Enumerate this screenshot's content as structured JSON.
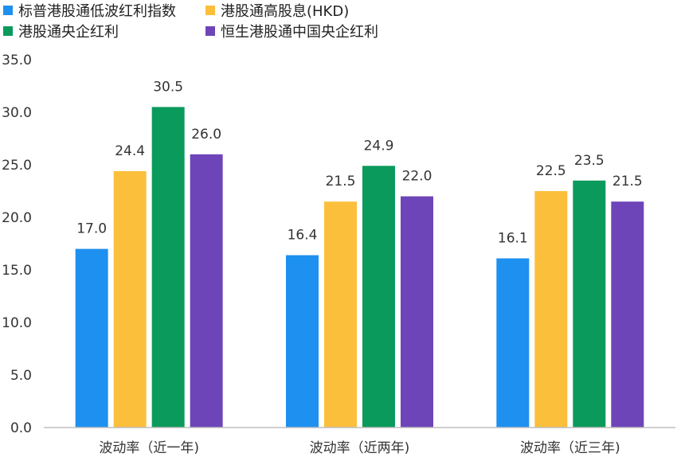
{
  "chart_data": {
    "type": "bar",
    "title": "",
    "xlabel": "",
    "ylabel": "",
    "categories": [
      "波动率（近一年)",
      "波动率（近两年)",
      "波动率（近三年)"
    ],
    "ylim": [
      0,
      35
    ],
    "yticks": [
      "0.0",
      "5.0",
      "10.0",
      "15.0",
      "20.0",
      "25.0",
      "30.0",
      "35.0"
    ],
    "grid": false,
    "legend_position": "top",
    "series": [
      {
        "name": "标普港股通低波红利指数",
        "color": "#1e90f0",
        "values": [
          17.0,
          16.4,
          16.1
        ],
        "labels": [
          "17.0",
          "16.4",
          "16.1"
        ]
      },
      {
        "name": "港股通高股息(HKD)",
        "color": "#fbbf3c",
        "values": [
          24.4,
          21.5,
          22.5
        ],
        "labels": [
          "24.4",
          "21.5",
          "22.5"
        ]
      },
      {
        "name": "港股通央企红利",
        "color": "#0a9a5c",
        "values": [
          30.5,
          24.9,
          23.5
        ],
        "labels": [
          "30.5",
          "24.9",
          "23.5"
        ]
      },
      {
        "name": "恒生港股通中国央企红利",
        "color": "#6e45b8",
        "values": [
          26.0,
          22.0,
          21.5
        ],
        "labels": [
          "26.0",
          "22.0",
          "21.5"
        ]
      }
    ]
  }
}
